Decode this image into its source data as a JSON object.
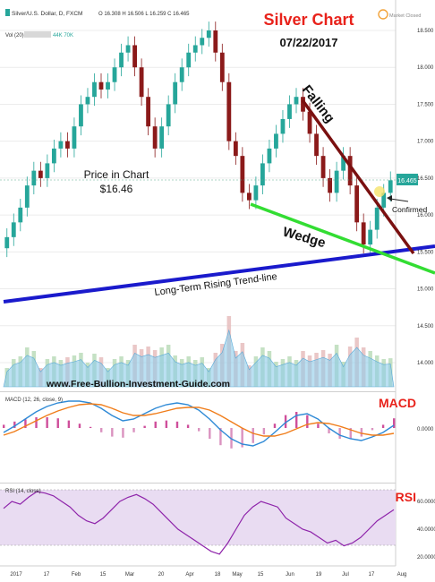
{
  "header": {
    "symbol_line": "Silver/U.S. Dollar, D, FXCM",
    "ohlc": "O 16.308  H 16.506  L 16.259  C 16.465",
    "vol_line": "Vol (20)",
    "vol_values": "44K  70K",
    "market_status": "Market Closed"
  },
  "annotations": {
    "title": "Silver Chart",
    "date": "07/22/2017",
    "price_label": "Price in Chart",
    "price_value": "$16.46",
    "falling": "Falling",
    "confirmed": "Confirmed",
    "wedge": "Wedge",
    "trendline": "Long-Term Rising Trend-line",
    "website": "www.Free-Bullion-Investment-Guide.com",
    "macd_title": "MACD",
    "rsi_title": "RSI"
  },
  "colors": {
    "up": "#26a69a",
    "down": "#8b1a1a",
    "falling_line": "#7a1010",
    "wedge_line": "#33dd33",
    "trend_line": "#1a1acc",
    "red_text": "#e8221b",
    "macd_line": "#2f8ad6",
    "signal_line": "#f07d1a",
    "rsi_line": "#8e24aa",
    "volume": "#8ecbea"
  },
  "chart_data": [
    {
      "type": "candlestick",
      "title": "Silver/U.S. Dollar, D, FXCM",
      "y_ticks": [
        14.0,
        14.5,
        15.0,
        15.5,
        16.0,
        16.5,
        17.0,
        17.5,
        18.0,
        18.5
      ],
      "ylim": [
        13.85,
        18.6
      ],
      "x_ticks": [
        "2017",
        "17",
        "Feb",
        "15",
        "Mar",
        "20",
        "Apr",
        "18",
        "May",
        "15",
        "Jun",
        "19",
        "Jul",
        "17",
        "Aug"
      ],
      "last_price": "16.465",
      "closes": [
        15.7,
        15.9,
        16.1,
        16.4,
        16.6,
        16.5,
        16.7,
        16.9,
        17.0,
        16.9,
        17.2,
        17.5,
        17.6,
        17.8,
        17.7,
        17.8,
        18.0,
        18.2,
        18.3,
        18.0,
        17.6,
        17.2,
        16.9,
        17.2,
        17.5,
        17.8,
        18.0,
        18.2,
        18.3,
        18.4,
        18.5,
        18.2,
        17.8,
        17.0,
        16.8,
        16.3,
        16.2,
        16.4,
        16.7,
        16.9,
        17.1,
        17.3,
        17.5,
        17.6,
        17.4,
        17.1,
        16.8,
        16.5,
        16.3,
        16.6,
        16.8,
        16.4,
        15.9,
        15.6,
        15.8,
        16.1,
        16.3,
        16.47
      ]
    },
    {
      "type": "bar",
      "title": "Vol (20)",
      "y_ticks": [
        "44K",
        "70K"
      ]
    },
    {
      "type": "line",
      "title": "MACD (12, 26, close, 9)",
      "y_ticks": [
        0.0
      ],
      "series": [
        {
          "name": "MACD",
          "values": [
            -0.05,
            0.02,
            0.1,
            0.18,
            0.24,
            0.28,
            0.3,
            0.3,
            0.28,
            0.22,
            0.14,
            0.08,
            0.1,
            0.16,
            0.22,
            0.26,
            0.28,
            0.26,
            0.2,
            0.1,
            -0.02,
            -0.12,
            -0.18,
            -0.2,
            -0.15,
            -0.05,
            0.06,
            0.14,
            0.16,
            0.1,
            0.0,
            -0.08,
            -0.12,
            -0.14,
            -0.1,
            -0.05,
            0.03
          ]
        },
        {
          "name": "Signal",
          "values": [
            -0.08,
            -0.04,
            0.02,
            0.08,
            0.14,
            0.19,
            0.23,
            0.26,
            0.27,
            0.26,
            0.22,
            0.17,
            0.14,
            0.14,
            0.16,
            0.19,
            0.22,
            0.23,
            0.23,
            0.2,
            0.14,
            0.07,
            0.0,
            -0.06,
            -0.09,
            -0.09,
            -0.06,
            -0.01,
            0.04,
            0.06,
            0.05,
            0.02,
            -0.02,
            -0.06,
            -0.08,
            -0.08,
            -0.06
          ]
        }
      ]
    },
    {
      "type": "line",
      "title": "RSI (14, close)",
      "y_ticks": [
        20.0,
        40.0,
        60.0
      ],
      "ylim": [
        15,
        75
      ],
      "series": [
        {
          "name": "RSI",
          "values": [
            55,
            60,
            58,
            63,
            67,
            66,
            64,
            60,
            56,
            50,
            46,
            44,
            48,
            54,
            60,
            63,
            65,
            62,
            58,
            52,
            46,
            40,
            36,
            32,
            28,
            24,
            22,
            30,
            40,
            50,
            56,
            60,
            58,
            56,
            48,
            44,
            40,
            38,
            34,
            30,
            32,
            28,
            30,
            34,
            40,
            46,
            50,
            54
          ]
        }
      ]
    }
  ]
}
